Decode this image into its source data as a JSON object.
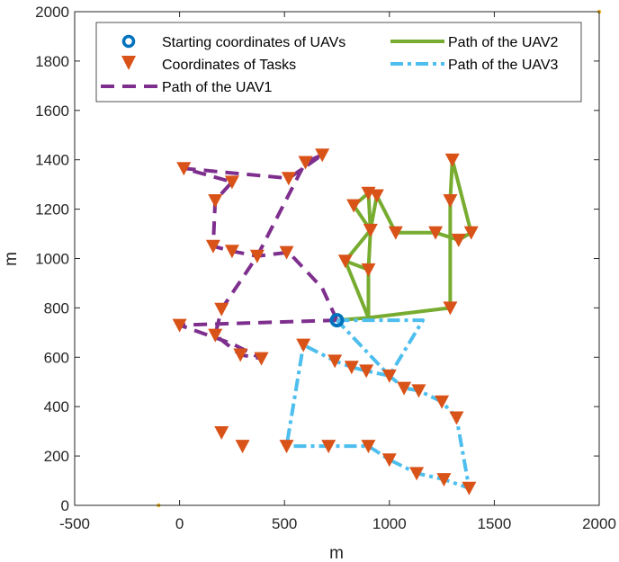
{
  "chart_data": {
    "type": "line",
    "title": "",
    "xlabel": "m",
    "ylabel": "m",
    "xlim": [
      -500,
      2000
    ],
    "ylim": [
      0,
      2000
    ],
    "xticks": [
      -500,
      0,
      500,
      1000,
      1500,
      2000
    ],
    "yticks": [
      0,
      200,
      400,
      600,
      800,
      1000,
      1200,
      1400,
      1600,
      1800,
      2000
    ],
    "grid": false,
    "legend_position": "top",
    "legend": {
      "start": "Starting coordinates of UAVs",
      "tasks": "Coordinates of Tasks",
      "uav1": "Path of the UAV1",
      "uav2": "Path of the UAV2",
      "uav3": "Path of the UAV3"
    },
    "colors": {
      "uav1": "#7E2F8E",
      "uav2": "#77AC30",
      "uav3": "#4DBEEE",
      "tasks": "#D95319",
      "start": "#0072BD",
      "boundary": "#EDB120"
    },
    "start": {
      "x": 750,
      "y": 750
    },
    "boundary_points": [
      {
        "x": -100,
        "y": 0
      },
      {
        "x": 2000,
        "y": 2000
      }
    ],
    "tasks": [
      [
        20,
        1365
      ],
      [
        250,
        1310
      ],
      [
        520,
        1325
      ],
      [
        600,
        1390
      ],
      [
        680,
        1420
      ],
      [
        170,
        1235
      ],
      [
        160,
        1050
      ],
      [
        250,
        1030
      ],
      [
        370,
        1010
      ],
      [
        510,
        1025
      ],
      [
        200,
        795
      ],
      [
        0,
        730
      ],
      [
        170,
        690
      ],
      [
        290,
        610
      ],
      [
        390,
        595
      ],
      [
        200,
        295
      ],
      [
        300,
        240
      ],
      [
        830,
        1215
      ],
      [
        900,
        1265
      ],
      [
        940,
        1255
      ],
      [
        910,
        1115
      ],
      [
        1030,
        1105
      ],
      [
        1220,
        1105
      ],
      [
        1390,
        1105
      ],
      [
        1300,
        1400
      ],
      [
        1290,
        1235
      ],
      [
        1330,
        1075
      ],
      [
        790,
        990
      ],
      [
        900,
        955
      ],
      [
        1290,
        800
      ],
      [
        590,
        650
      ],
      [
        740,
        585
      ],
      [
        820,
        560
      ],
      [
        890,
        545
      ],
      [
        1000,
        525
      ],
      [
        1070,
        475
      ],
      [
        1140,
        465
      ],
      [
        1250,
        420
      ],
      [
        1320,
        355
      ],
      [
        510,
        240
      ],
      [
        710,
        240
      ],
      [
        900,
        240
      ],
      [
        1000,
        185
      ],
      [
        1130,
        130
      ],
      [
        1260,
        105
      ],
      [
        1380,
        70
      ]
    ],
    "series": [
      {
        "name": "Path of the UAV1",
        "key": "uav1",
        "style": "dashed",
        "points": [
          [
            750,
            750
          ],
          [
            680,
            880
          ],
          [
            520,
            1025
          ],
          [
            370,
            1010
          ],
          [
            250,
            1030
          ],
          [
            160,
            1050
          ],
          [
            170,
            1235
          ],
          [
            250,
            1310
          ],
          [
            20,
            1365
          ],
          [
            520,
            1325
          ],
          [
            680,
            1420
          ],
          [
            600,
            1390
          ],
          [
            370,
            1010
          ],
          [
            200,
            795
          ],
          [
            170,
            690
          ],
          [
            290,
            610
          ],
          [
            390,
            595
          ],
          [
            250,
            655
          ],
          [
            0,
            730
          ],
          [
            750,
            750
          ]
        ]
      },
      {
        "name": "Path of the UAV2",
        "key": "uav2",
        "style": "solid",
        "points": [
          [
            750,
            750
          ],
          [
            900,
            760
          ],
          [
            900,
            955
          ],
          [
            910,
            1115
          ],
          [
            940,
            1255
          ],
          [
            1030,
            1105
          ],
          [
            1220,
            1105
          ],
          [
            1330,
            1075
          ],
          [
            1390,
            1105
          ],
          [
            1300,
            1400
          ],
          [
            1290,
            1235
          ],
          [
            1290,
            800
          ],
          [
            900,
            760
          ],
          [
            790,
            990
          ],
          [
            910,
            1115
          ],
          [
            830,
            1215
          ],
          [
            900,
            1265
          ],
          [
            910,
            1115
          ],
          [
            790,
            990
          ],
          [
            900,
            955
          ]
        ]
      },
      {
        "name": "Path of the UAV3",
        "key": "uav3",
        "style": "dashdot",
        "points": [
          [
            750,
            750
          ],
          [
            1160,
            750
          ],
          [
            1000,
            525
          ],
          [
            890,
            545
          ],
          [
            820,
            560
          ],
          [
            740,
            585
          ],
          [
            590,
            650
          ],
          [
            510,
            240
          ],
          [
            710,
            240
          ],
          [
            900,
            240
          ],
          [
            1000,
            185
          ],
          [
            1130,
            130
          ],
          [
            1260,
            105
          ],
          [
            1380,
            70
          ],
          [
            1320,
            355
          ],
          [
            1250,
            420
          ],
          [
            1140,
            465
          ],
          [
            1070,
            475
          ],
          [
            1000,
            525
          ],
          [
            750,
            750
          ]
        ]
      }
    ]
  }
}
